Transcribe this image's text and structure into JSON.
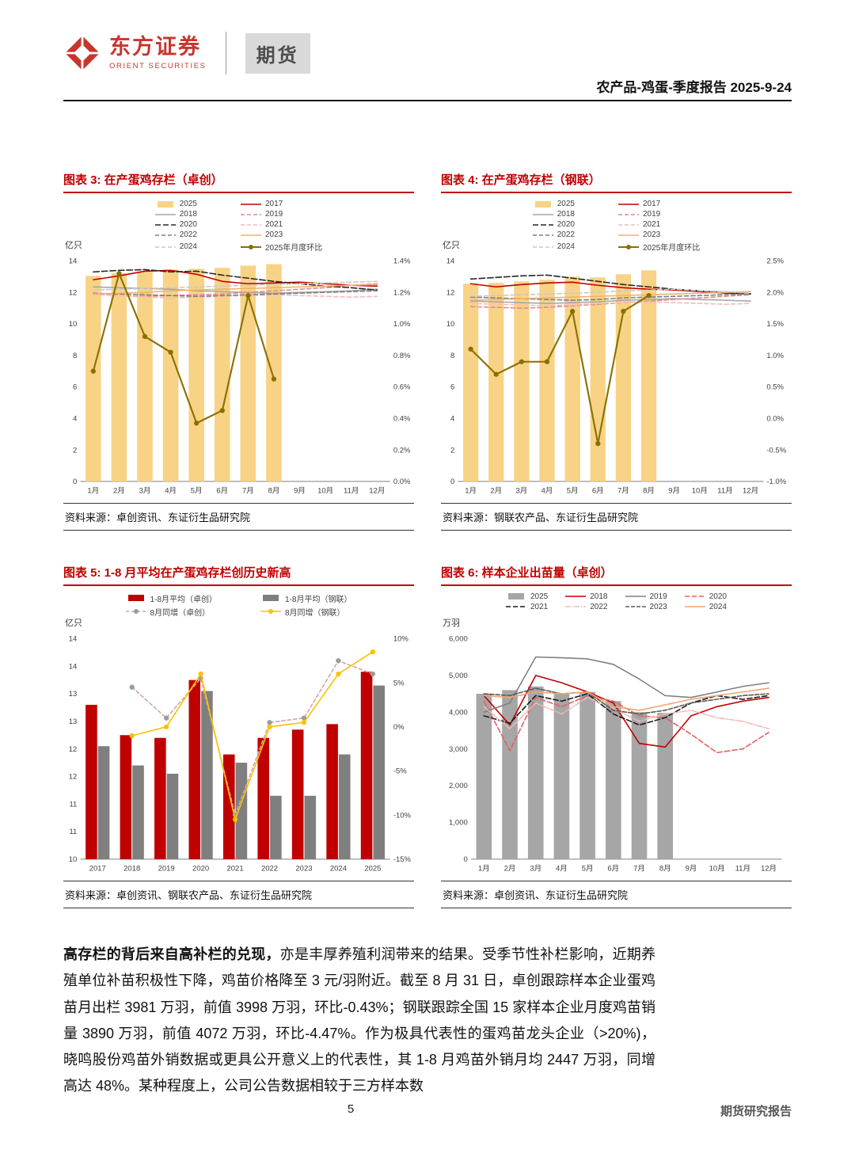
{
  "header": {
    "logo_cn": "东方证券",
    "logo_en": "ORIENT SECURITIES",
    "dept": "期货",
    "report_title": "农产品-鸡蛋-季度报告 2025-9-24",
    "brand_red": "#C7362E"
  },
  "footer": {
    "page_number": "5",
    "report_type": "期货研究报告"
  },
  "body": {
    "lead": "高存栏的背后来自高补栏的兑现，",
    "rest": "亦是丰厚养殖利润带来的结果。受季节性补栏影响，近期养殖单位补苗积极性下降，鸡苗价格降至 3 元/羽附近。截至 8 月 31 日，卓创跟踪样本企业蛋鸡苗月出栏 3981 万羽，前值 3998 万羽，环比-0.43%；钢联跟踪全国 15 家样本企业月度鸡苗销量 3890 万羽，前值 4072 万羽，环比-4.47%。作为极具代表性的蛋鸡苗龙头企业（>20%)，晓鸣股份鸡苗外销数据或更具公开意义上的代表性，其 1-8 月鸡苗外销月均 2447 万羽，同增高达 48%。某种程度上，公司公告数据相较于三方样本数"
  },
  "chart_data": [
    {
      "type": "bar+line",
      "title": "图表 3: 在产蛋鸡存栏（卓创）",
      "source": "资料来源：卓创资讯、东证衍生品研究院",
      "unit": "亿只",
      "categories": [
        "1月",
        "2月",
        "3月",
        "4月",
        "5月",
        "6月",
        "7月",
        "8月",
        "9月",
        "10月",
        "11月",
        "12月"
      ],
      "left_axis": {
        "min": 0,
        "max": 14,
        "step": 2,
        "format": "int"
      },
      "right_axis": {
        "min": 0,
        "max": 1.4,
        "step": 0.2,
        "format": "pct1"
      },
      "legend_columns": 2,
      "series": [
        {
          "name": "2025",
          "kind": "bar",
          "color": "#F8D385",
          "values": [
            13.05,
            13.22,
            13.34,
            13.45,
            13.5,
            13.56,
            13.7,
            13.79
          ]
        },
        {
          "name": "2017",
          "kind": "line",
          "color": "#C00000",
          "values": [
            12.8,
            13.05,
            13.35,
            13.4,
            13.15,
            12.7,
            12.55,
            12.6,
            12.65,
            12.55,
            12.45,
            12.4
          ]
        },
        {
          "name": "2018",
          "kind": "line",
          "color": "#A6A6A6",
          "values": [
            12.35,
            12.3,
            12.25,
            12.2,
            12.1,
            12.05,
            12.0,
            11.95,
            12.0,
            12.05,
            12.1,
            12.2
          ]
        },
        {
          "name": "2019",
          "kind": "line",
          "color": "#E08C8C",
          "dash": "5,3",
          "values": [
            11.9,
            11.8,
            11.75,
            11.8,
            11.85,
            11.9,
            12.0,
            12.1,
            12.2,
            12.3,
            12.45,
            12.55
          ]
        },
        {
          "name": "2020",
          "kind": "line",
          "color": "#262626",
          "dash": "7,3",
          "values": [
            13.3,
            13.4,
            13.45,
            13.3,
            13.35,
            13.1,
            12.9,
            12.7,
            12.55,
            12.4,
            12.3,
            12.15
          ]
        },
        {
          "name": "2021",
          "kind": "line",
          "color": "#F2BCBC",
          "dash": "5,3",
          "values": [
            11.85,
            11.8,
            11.7,
            11.65,
            11.7,
            11.75,
            11.8,
            11.85,
            11.8,
            11.75,
            11.7,
            11.75
          ]
        },
        {
          "name": "2022",
          "kind": "line",
          "color": "#7F7F7F",
          "dash": "5,3",
          "values": [
            11.95,
            11.9,
            11.85,
            11.8,
            11.75,
            11.8,
            11.85,
            11.9,
            11.95,
            12.0,
            12.05,
            12.1
          ]
        },
        {
          "name": "2023",
          "kind": "line",
          "color": "#F2B06E",
          "values": [
            11.9,
            11.95,
            12.0,
            12.1,
            12.15,
            12.2,
            12.25,
            12.3,
            12.35,
            12.4,
            12.45,
            12.5
          ]
        },
        {
          "name": "2024",
          "kind": "line",
          "color": "#C9C9C9",
          "dash": "5,3",
          "values": [
            12.15,
            12.2,
            12.25,
            12.3,
            12.35,
            12.4,
            12.45,
            12.5,
            12.55,
            12.6,
            12.65,
            12.7
          ]
        },
        {
          "name": "2025年月度环比",
          "kind": "line",
          "color": "#8A7000",
          "axis": "right",
          "marker": true,
          "width": 2,
          "values": [
            0.7,
            1.32,
            0.92,
            0.82,
            0.37,
            0.45,
            1.18,
            0.65
          ]
        }
      ]
    },
    {
      "type": "bar+line",
      "title": "图表 4: 在产蛋鸡存栏（钢联）",
      "source": "资料来源：钢联农产品、东证衍生品研究院",
      "unit": "亿只",
      "categories": [
        "1月",
        "2月",
        "3月",
        "4月",
        "5月",
        "6月",
        "7月",
        "8月",
        "9月",
        "10月",
        "11月",
        "12月"
      ],
      "left_axis": {
        "min": 0,
        "max": 14,
        "step": 2,
        "format": "int"
      },
      "right_axis": {
        "min": -1.0,
        "max": 2.5,
        "step": 0.5,
        "format": "pct1"
      },
      "legend_columns": 2,
      "series": [
        {
          "name": "2025",
          "kind": "bar",
          "color": "#F8D385",
          "values": [
            12.55,
            12.6,
            12.7,
            12.8,
            13.0,
            12.95,
            13.15,
            13.4
          ]
        },
        {
          "name": "2017",
          "kind": "line",
          "color": "#C00000",
          "values": [
            12.55,
            12.35,
            12.5,
            12.6,
            12.65,
            12.45,
            12.3,
            12.2,
            12.15,
            12.05,
            11.95,
            11.9
          ]
        },
        {
          "name": "2018",
          "kind": "line",
          "color": "#A6A6A6",
          "values": [
            11.45,
            11.4,
            11.35,
            11.3,
            11.35,
            11.4,
            11.5,
            11.55,
            11.6,
            11.55,
            11.5,
            11.45
          ]
        },
        {
          "name": "2019",
          "kind": "line",
          "color": "#E08C8C",
          "dash": "5,3",
          "values": [
            11.1,
            11.05,
            11.0,
            11.05,
            11.15,
            11.25,
            11.35,
            11.45,
            11.55,
            11.65,
            11.75,
            11.85
          ]
        },
        {
          "name": "2020",
          "kind": "line",
          "color": "#262626",
          "dash": "7,3",
          "values": [
            12.85,
            12.95,
            13.05,
            13.1,
            12.9,
            12.7,
            12.5,
            12.35,
            12.2,
            12.1,
            12.0,
            11.9
          ]
        },
        {
          "name": "2021",
          "kind": "line",
          "color": "#F2BCBC",
          "dash": "5,3",
          "values": [
            11.3,
            11.25,
            11.2,
            11.15,
            11.2,
            11.3,
            11.35,
            11.4,
            11.35,
            11.3,
            11.25,
            11.3
          ]
        },
        {
          "name": "2022",
          "kind": "line",
          "color": "#7F7F7F",
          "dash": "5,3",
          "values": [
            11.7,
            11.65,
            11.6,
            11.55,
            11.5,
            11.55,
            11.65,
            11.7,
            11.75,
            11.8,
            11.85,
            11.9
          ]
        },
        {
          "name": "2023",
          "kind": "line",
          "color": "#F2B06E",
          "values": [
            11.5,
            11.55,
            11.6,
            11.65,
            11.7,
            11.75,
            11.8,
            11.85,
            11.9,
            11.95,
            12.0,
            12.05
          ]
        },
        {
          "name": "2024",
          "kind": "line",
          "color": "#C9C9C9",
          "dash": "5,3",
          "values": [
            11.75,
            11.8,
            11.85,
            11.9,
            11.95,
            12.0,
            12.1,
            12.15,
            12.2,
            12.1,
            12.05,
            11.95
          ]
        },
        {
          "name": "2025年月度环比",
          "kind": "line",
          "color": "#8A7000",
          "axis": "right",
          "marker": true,
          "width": 2,
          "values": [
            1.1,
            0.7,
            0.9,
            0.9,
            1.7,
            -0.4,
            1.7,
            1.95
          ]
        }
      ]
    },
    {
      "type": "bar+line",
      "title": "图表 5: 1-8 月平均在产蛋鸡存栏创历史新高",
      "source": "资料来源：卓创资讯、钢联农产品、东证衍生品研究院",
      "unit": "亿只",
      "categories": [
        "2017",
        "2018",
        "2019",
        "2020",
        "2021",
        "2022",
        "2023",
        "2024",
        "2025"
      ],
      "left_axis": {
        "min": 10,
        "max": 14,
        "step": 0.5,
        "format": "round"
      },
      "right_axis": {
        "min": -15,
        "max": 10,
        "step": 5,
        "format": "pct0"
      },
      "legend_columns": 2,
      "series": [
        {
          "name": "1-8月平均（卓创）",
          "kind": "bar",
          "color": "#C00000",
          "values": [
            12.8,
            12.25,
            12.2,
            13.25,
            11.9,
            12.2,
            12.35,
            12.45,
            13.4
          ]
        },
        {
          "name": "1-8月平均（钢联）",
          "kind": "bar",
          "color": "#7F7F7F",
          "values": [
            12.05,
            11.7,
            11.55,
            13.05,
            11.75,
            11.15,
            11.15,
            11.9,
            13.15
          ]
        },
        {
          "name": "8月同增（卓创）",
          "kind": "line",
          "color": "#C9A9A9",
          "dash": "4,3",
          "axis": "right",
          "marker": true,
          "marker_color": "#9B9B9B",
          "values": [
            null,
            4.5,
            1.0,
            5.5,
            -10.0,
            0.5,
            1.0,
            7.5,
            6.0
          ]
        },
        {
          "name": "8月同增（钢联）",
          "kind": "line",
          "color": "#FFC000",
          "axis": "right",
          "marker": true,
          "values": [
            null,
            -1.0,
            0.0,
            6.0,
            -10.5,
            0.0,
            0.5,
            6.0,
            8.5
          ]
        }
      ]
    },
    {
      "type": "bar+line",
      "title": "图表 6: 样本企业出苗量（卓创）",
      "source": "资料来源：卓创资讯、东证衍生品研究院",
      "unit": "万羽",
      "categories": [
        "1月",
        "2月",
        "3月",
        "4月",
        "5月",
        "6月",
        "7月",
        "8月",
        "9月",
        "10月",
        "11月",
        "12月"
      ],
      "left_axis": {
        "min": 0,
        "max": 6000,
        "step": 1000,
        "format": "th"
      },
      "legend_columns": 4,
      "series": [
        {
          "name": "2025",
          "kind": "bar",
          "color": "#A6A6A6",
          "values": [
            4500,
            4600,
            4700,
            4500,
            4550,
            4300,
            4000,
            3981
          ]
        },
        {
          "name": "2018",
          "kind": "line",
          "color": "#C00000",
          "values": [
            4450,
            3650,
            5000,
            4800,
            4550,
            4250,
            3150,
            3050,
            3900,
            4150,
            4300,
            4400
          ]
        },
        {
          "name": "2019",
          "kind": "line",
          "color": "#808080",
          "values": [
            4000,
            4250,
            5500,
            5480,
            5450,
            5300,
            4900,
            4450,
            4400,
            4550,
            4700,
            4800
          ]
        },
        {
          "name": "2020",
          "kind": "line",
          "color": "#E06060",
          "dash": "6,3",
          "values": [
            4300,
            2950,
            4400,
            4150,
            4450,
            4300,
            3900,
            3850,
            3400,
            2900,
            3000,
            3450
          ]
        },
        {
          "name": "2021",
          "kind": "line",
          "color": "#1A1A1A",
          "dash": "6,3",
          "values": [
            3900,
            3700,
            4450,
            4300,
            4500,
            3950,
            3650,
            3850,
            4250,
            4450,
            4350,
            4450
          ]
        },
        {
          "name": "2022",
          "kind": "line",
          "color": "#F2B8B8",
          "dash": "6,2,1.5,2",
          "values": [
            4150,
            3550,
            4250,
            3950,
            4400,
            4100,
            3750,
            3950,
            4050,
            3850,
            3750,
            3550
          ]
        },
        {
          "name": "2023",
          "kind": "line",
          "color": "#595959",
          "dash": "5,2",
          "values": [
            4500,
            4450,
            4650,
            4500,
            4550,
            4050,
            3950,
            4050,
            4250,
            4350,
            4450,
            4500
          ]
        },
        {
          "name": "2024",
          "kind": "line",
          "color": "#F4A470",
          "values": [
            4450,
            4400,
            4550,
            4500,
            4550,
            4150,
            4050,
            4200,
            4350,
            4450,
            4550,
            4650
          ]
        }
      ]
    }
  ]
}
